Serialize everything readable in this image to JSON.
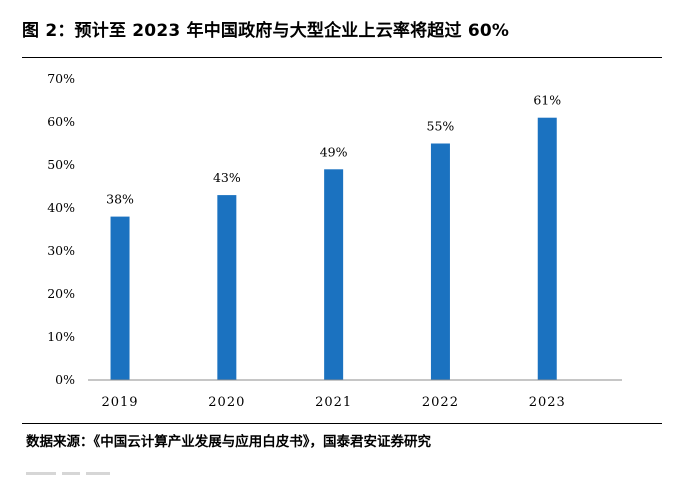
{
  "figure": {
    "title": "图 2：预计至 2023 年中国政府与大型企业上云率将超过 60%",
    "source": "数据来源：《中国云计算产业发展与应用白皮书》，国泰君安证券研究"
  },
  "chart_data": {
    "type": "bar",
    "categories": [
      "2019",
      "2020",
      "2021",
      "2022",
      "2023"
    ],
    "values": [
      38,
      43,
      49,
      55,
      61
    ],
    "data_labels": [
      "38%",
      "43%",
      "49%",
      "55%",
      "61%"
    ],
    "y_ticks": [
      "0%",
      "10%",
      "20%",
      "30%",
      "40%",
      "50%",
      "60%",
      "70%"
    ],
    "ylim": [
      0,
      70
    ],
    "title": "",
    "xlabel": "",
    "ylabel": "",
    "grid": false,
    "legend": "none",
    "bar_color": "#1b72c0"
  }
}
